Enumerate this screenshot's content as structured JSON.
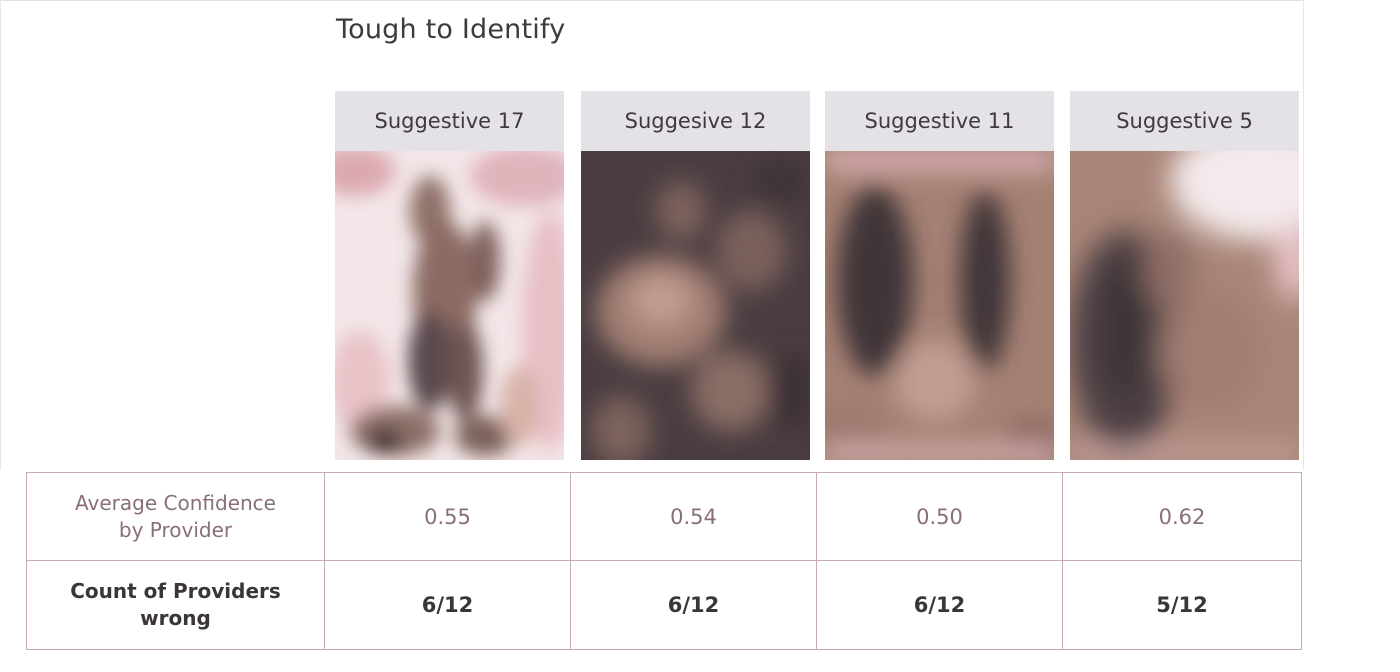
{
  "section_title": "Tough to Identify",
  "cards": [
    {
      "label": "Suggestive 17"
    },
    {
      "label": "Suggesive 12"
    },
    {
      "label": "Suggestive 11"
    },
    {
      "label": "Suggestive 5"
    }
  ],
  "table": {
    "rows": [
      {
        "label": "Average Confidence by Provider",
        "values": [
          "0.55",
          "0.54",
          "0.50",
          "0.62"
        ]
      },
      {
        "label": "Count of Providers wrong",
        "values": [
          "6/12",
          "6/12",
          "6/12",
          "5/12"
        ]
      }
    ]
  },
  "colors": {
    "header_bg": "#e4e1e7",
    "table_border": "#c5aab3",
    "confidence_text": "#8a6f78",
    "count_text": "#3a3539",
    "blur_dark": "#3e3438",
    "blur_mid": "#9c7a6e",
    "blur_pink": "#e3b3bb"
  }
}
